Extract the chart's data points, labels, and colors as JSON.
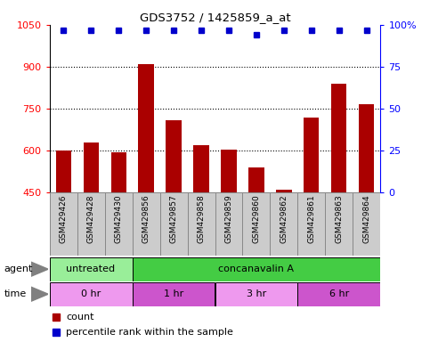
{
  "title": "GDS3752 / 1425859_a_at",
  "samples": [
    "GSM429426",
    "GSM429428",
    "GSM429430",
    "GSM429856",
    "GSM429857",
    "GSM429858",
    "GSM429859",
    "GSM429860",
    "GSM429862",
    "GSM429861",
    "GSM429863",
    "GSM429864"
  ],
  "bar_values": [
    600,
    630,
    595,
    910,
    710,
    620,
    605,
    540,
    460,
    720,
    840,
    765
  ],
  "percentile_values": [
    97,
    97,
    97,
    97,
    97,
    97,
    97,
    94,
    97,
    97,
    97,
    97
  ],
  "bar_color": "#aa0000",
  "dot_color": "#0000cc",
  "ylim_left": [
    450,
    1050
  ],
  "ylim_right": [
    0,
    100
  ],
  "yticks_left": [
    450,
    600,
    750,
    900,
    1050
  ],
  "yticks_right": [
    0,
    25,
    50,
    75,
    100
  ],
  "dotted_lines": [
    600,
    750,
    900
  ],
  "agent_groups": [
    {
      "label": "untreated",
      "start": 0,
      "end": 3,
      "color": "#99ee99"
    },
    {
      "label": "concanavalin A",
      "start": 3,
      "end": 12,
      "color": "#44cc44"
    }
  ],
  "time_groups": [
    {
      "label": "0 hr",
      "start": 0,
      "end": 3,
      "color": "#ee99ee"
    },
    {
      "label": "1 hr",
      "start": 3,
      "end": 6,
      "color": "#cc55cc"
    },
    {
      "label": "3 hr",
      "start": 6,
      "end": 9,
      "color": "#ee99ee"
    },
    {
      "label": "6 hr",
      "start": 9,
      "end": 12,
      "color": "#cc55cc"
    }
  ],
  "legend_count_color": "#aa0000",
  "legend_dot_color": "#0000cc",
  "sample_bg_color": "#cccccc",
  "sample_border_color": "#888888"
}
